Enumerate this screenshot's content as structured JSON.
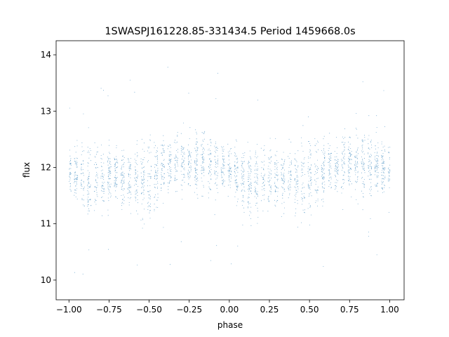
{
  "chart_data": {
    "type": "scatter",
    "title": "1SWASPJ161228.85-331434.5 Period 1459668.0s",
    "xlabel": "phase",
    "ylabel": "flux",
    "xlim": [
      -1.08,
      1.09
    ],
    "ylim": [
      9.65,
      14.25
    ],
    "x_ticks": [
      -1.0,
      -0.75,
      -0.5,
      -0.25,
      0.0,
      0.25,
      0.5,
      0.75,
      1.0
    ],
    "x_tick_labels": [
      "−1.00",
      "−0.75",
      "−0.50",
      "−0.25",
      "0.00",
      "0.25",
      "0.50",
      "0.75",
      "1.00"
    ],
    "y_ticks": [
      10,
      11,
      12,
      13,
      14
    ],
    "y_tick_labels": [
      "10",
      "11",
      "12",
      "13",
      "14"
    ],
    "grid": false,
    "legend": "none",
    "marker_color": "#1f77b4",
    "series": [
      {
        "phase_profile": [
          {
            "x": -1.0,
            "y": 11.95,
            "spread": 0.35
          },
          {
            "x": -0.875,
            "y": 11.75,
            "spread": 0.6
          },
          {
            "x": -0.75,
            "y": 11.85,
            "spread": 0.45
          },
          {
            "x": -0.625,
            "y": 11.8,
            "spread": 0.45
          },
          {
            "x": -0.52,
            "y": 11.75,
            "spread": 0.7
          },
          {
            "x": -0.4,
            "y": 12.0,
            "spread": 0.4
          },
          {
            "x": -0.25,
            "y": 12.1,
            "spread": 0.45
          },
          {
            "x": -0.18,
            "y": 12.15,
            "spread": 0.55
          },
          {
            "x": -0.1,
            "y": 12.05,
            "spread": 0.45
          },
          {
            "x": 0.0,
            "y": 11.95,
            "spread": 0.35
          },
          {
            "x": 0.125,
            "y": 11.75,
            "spread": 0.6
          },
          {
            "x": 0.25,
            "y": 11.85,
            "spread": 0.45
          },
          {
            "x": 0.375,
            "y": 11.8,
            "spread": 0.45
          },
          {
            "x": 0.48,
            "y": 11.75,
            "spread": 0.7
          },
          {
            "x": 0.6,
            "y": 12.0,
            "spread": 0.4
          },
          {
            "x": 0.75,
            "y": 12.1,
            "spread": 0.45
          },
          {
            "x": 0.82,
            "y": 12.15,
            "spread": 0.55
          },
          {
            "x": 0.9,
            "y": 12.05,
            "spread": 0.45
          },
          {
            "x": 1.0,
            "y": 11.95,
            "spread": 0.35
          }
        ],
        "observed_extremes": {
          "min": 9.85,
          "max": 14.05
        }
      }
    ]
  }
}
